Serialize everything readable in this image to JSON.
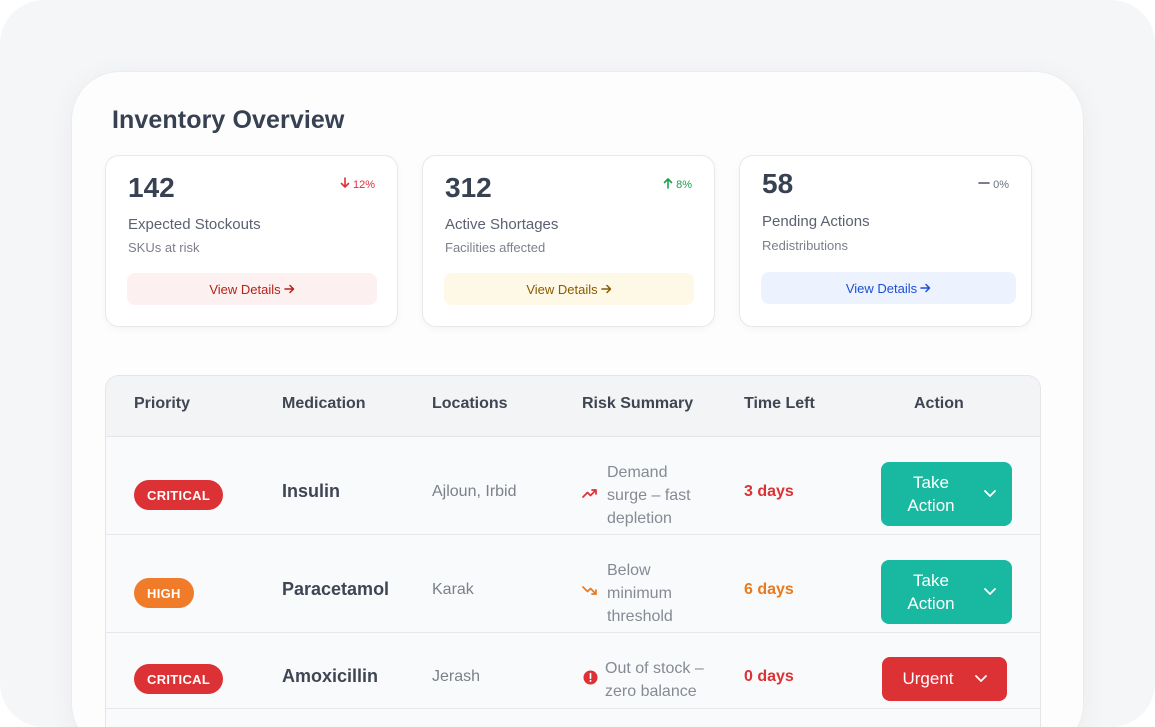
{
  "page_title": "Inventory Overview",
  "cards": [
    {
      "value": "142",
      "trend": {
        "direction": "down",
        "text": "12%",
        "color": "#dc3135"
      },
      "label": "Expected Stockouts",
      "sub": "SKUs at risk",
      "button": {
        "label": "View Details",
        "bg": "#fdf0f1",
        "color": "#b42318"
      }
    },
    {
      "value": "312",
      "trend": {
        "direction": "up",
        "text": "8%",
        "color": "#16a34a"
      },
      "label": "Active Shortages",
      "sub": "Facilities affected",
      "button": {
        "label": "View Details",
        "bg": "#fdf9e6",
        "color": "#8a5a00"
      }
    },
    {
      "value": "58",
      "trend": {
        "direction": "flat",
        "text": "0%",
        "color": "#6b7280"
      },
      "label": "Pending Actions",
      "sub": "Redistributions",
      "button": {
        "label": "View Details",
        "bg": "#edf3fe",
        "color": "#1d4ed8"
      }
    }
  ],
  "table": {
    "headers": {
      "priority": "Priority",
      "medication": "Medication",
      "locations": "Locations",
      "risk": "Risk Summary",
      "time": "Time Left",
      "action": "Action"
    },
    "rows": [
      {
        "priority": "CRITICAL",
        "priority_color": "#dc3135",
        "medication": "Insulin",
        "locations": "Ajloun, Irbid",
        "risk_icon": "trend-up-icon",
        "risk_lines": [
          "Demand",
          "surge – fast",
          "depletion"
        ],
        "time_left": "3 days",
        "time_color": "#dc3135",
        "action_lines": [
          "Take",
          "Action"
        ],
        "action_color": "#19b8a0"
      },
      {
        "priority": "HIGH",
        "priority_color": "#f07c2a",
        "medication": "Paracetamol",
        "locations": "Karak",
        "risk_icon": "trend-down-icon",
        "risk_lines": [
          "Below",
          "minimum",
          "threshold"
        ],
        "time_left": "6 days",
        "time_color": "#ea7a1e",
        "action_lines": [
          "Take",
          "Action"
        ],
        "action_color": "#19b8a0"
      },
      {
        "priority": "CRITICAL",
        "priority_color": "#dc3135",
        "medication": "Amoxicillin",
        "locations": "Jerash",
        "risk_icon": "alert-circle-icon",
        "risk_lines": [
          "Out of stock –",
          "zero balance"
        ],
        "time_left": "0 days",
        "time_color": "#dc3135",
        "action_lines": [
          "Urgent"
        ],
        "action_color": "#dc3135"
      }
    ]
  }
}
